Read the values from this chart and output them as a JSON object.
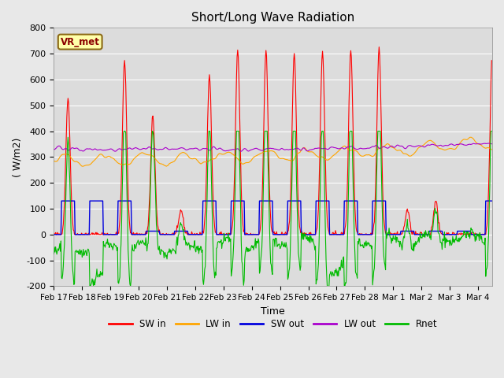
{
  "title": "Short/Long Wave Radiation",
  "xlabel": "Time",
  "ylabel": "( W/m2)",
  "ylim": [
    -200,
    800
  ],
  "n_days": 15.5,
  "background_color": "#dcdcdc",
  "plot_bg_color": "#dcdcdc",
  "colors": {
    "sw_in": "#ff0000",
    "lw_in": "#ffa500",
    "sw_out": "#0000dd",
    "lw_out": "#aa00cc",
    "rnet": "#00bb00"
  },
  "legend_labels": [
    "SW in",
    "LW in",
    "SW out",
    "LW out",
    "Rnet"
  ],
  "vr_met_label": "VR_met",
  "xtick_labels": [
    "Feb 17",
    "Feb 18",
    "Feb 19",
    "Feb 20",
    "Feb 21",
    "Feb 22",
    "Feb 23",
    "Feb 24",
    "Feb 25",
    "Feb 26",
    "Feb 27",
    "Feb 28",
    "Mar 1",
    "Mar 2",
    "Mar 3",
    "Mar 4"
  ],
  "ytick_values": [
    -200,
    -100,
    0,
    100,
    200,
    300,
    400,
    500,
    600,
    700,
    800
  ]
}
